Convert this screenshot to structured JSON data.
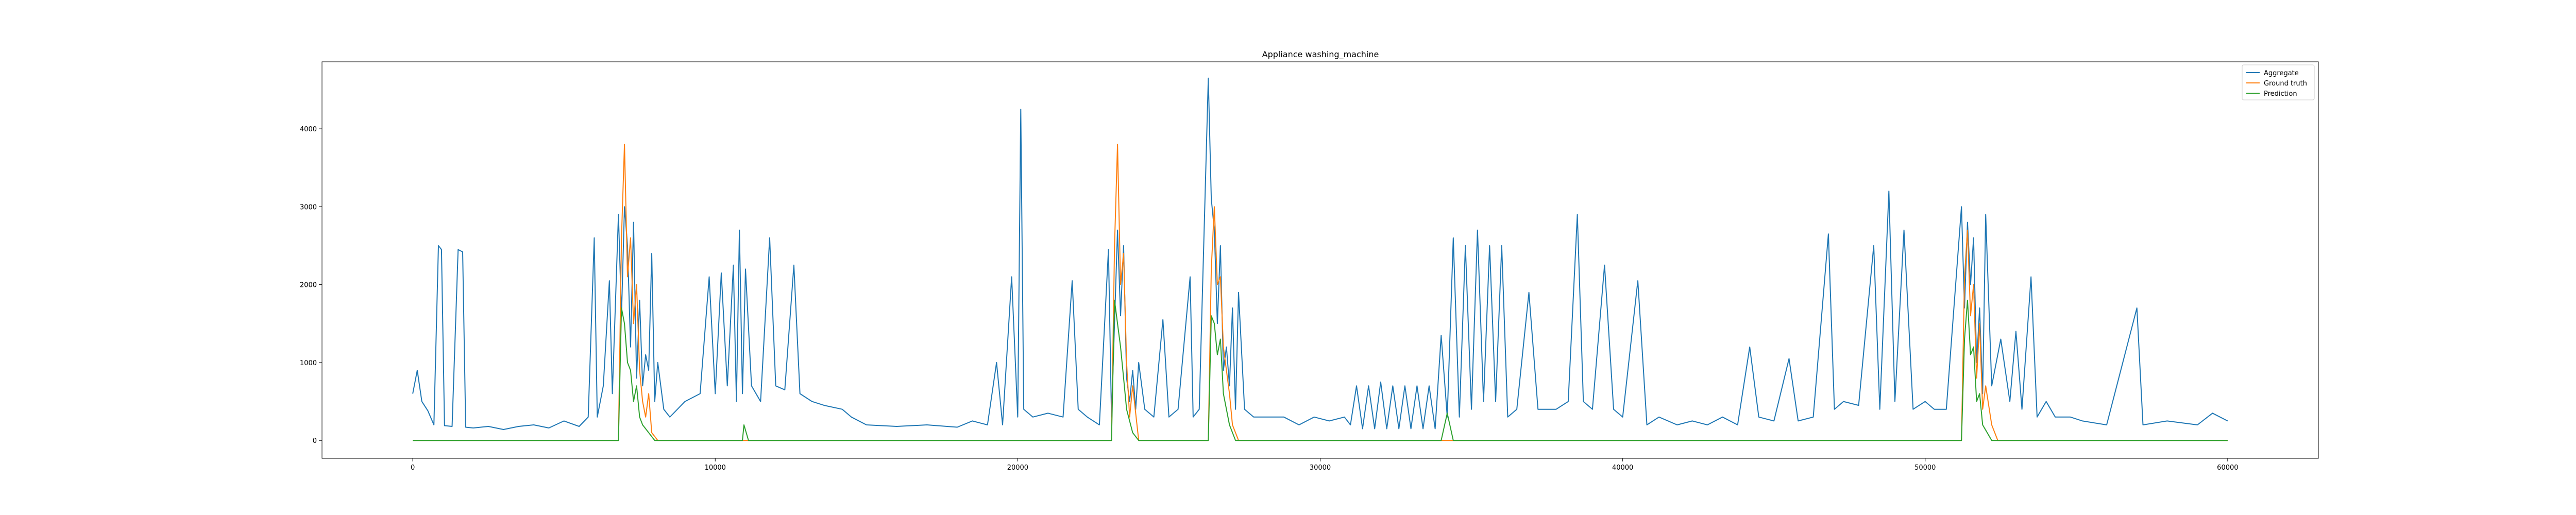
{
  "chart_data": {
    "type": "line",
    "title": "Appliance washing_machine",
    "xlabel": "",
    "ylabel": "",
    "xlim": [
      -3000,
      63000
    ],
    "ylim": [
      -230,
      4860
    ],
    "x_ticks": [
      0,
      10000,
      20000,
      30000,
      40000,
      50000,
      60000
    ],
    "y_ticks": [
      0,
      1000,
      2000,
      3000,
      4000
    ],
    "grid": false,
    "legend_position": "top-right",
    "series": [
      {
        "name": "Aggregate",
        "color": "#1f77b4",
        "points": [
          [
            0,
            600
          ],
          [
            150,
            900
          ],
          [
            300,
            500
          ],
          [
            500,
            380
          ],
          [
            700,
            200
          ],
          [
            850,
            2500
          ],
          [
            950,
            2450
          ],
          [
            1050,
            190
          ],
          [
            1300,
            180
          ],
          [
            1500,
            2450
          ],
          [
            1650,
            2420
          ],
          [
            1750,
            170
          ],
          [
            2000,
            160
          ],
          [
            2500,
            180
          ],
          [
            3000,
            140
          ],
          [
            3500,
            180
          ],
          [
            4000,
            200
          ],
          [
            4500,
            160
          ],
          [
            5000,
            250
          ],
          [
            5500,
            180
          ],
          [
            5800,
            300
          ],
          [
            6000,
            2600
          ],
          [
            6100,
            300
          ],
          [
            6300,
            700
          ],
          [
            6500,
            2050
          ],
          [
            6600,
            600
          ],
          [
            6800,
            2900
          ],
          [
            6900,
            1600
          ],
          [
            7000,
            3000
          ],
          [
            7100,
            2500
          ],
          [
            7200,
            1200
          ],
          [
            7300,
            2800
          ],
          [
            7400,
            800
          ],
          [
            7500,
            1800
          ],
          [
            7600,
            700
          ],
          [
            7700,
            1100
          ],
          [
            7800,
            900
          ],
          [
            7900,
            2400
          ],
          [
            8000,
            500
          ],
          [
            8100,
            1000
          ],
          [
            8300,
            400
          ],
          [
            8500,
            300
          ],
          [
            9000,
            500
          ],
          [
            9500,
            600
          ],
          [
            9800,
            2100
          ],
          [
            10000,
            600
          ],
          [
            10200,
            2150
          ],
          [
            10400,
            700
          ],
          [
            10600,
            2250
          ],
          [
            10700,
            500
          ],
          [
            10800,
            2700
          ],
          [
            10900,
            600
          ],
          [
            11000,
            2200
          ],
          [
            11200,
            700
          ],
          [
            11500,
            500
          ],
          [
            11800,
            2600
          ],
          [
            12000,
            700
          ],
          [
            12300,
            650
          ],
          [
            12600,
            2250
          ],
          [
            12800,
            600
          ],
          [
            13200,
            500
          ],
          [
            13600,
            450
          ],
          [
            14200,
            400
          ],
          [
            14500,
            300
          ],
          [
            15000,
            200
          ],
          [
            16000,
            180
          ],
          [
            17000,
            200
          ],
          [
            18000,
            170
          ],
          [
            18500,
            250
          ],
          [
            19000,
            200
          ],
          [
            19300,
            1000
          ],
          [
            19500,
            200
          ],
          [
            19800,
            2100
          ],
          [
            20000,
            300
          ],
          [
            20100,
            4250
          ],
          [
            20200,
            400
          ],
          [
            20500,
            300
          ],
          [
            21000,
            350
          ],
          [
            21500,
            300
          ],
          [
            21800,
            2050
          ],
          [
            22000,
            400
          ],
          [
            22300,
            300
          ],
          [
            22700,
            200
          ],
          [
            23000,
            2450
          ],
          [
            23100,
            300
          ],
          [
            23300,
            2700
          ],
          [
            23400,
            1600
          ],
          [
            23500,
            2500
          ],
          [
            23600,
            800
          ],
          [
            23700,
            500
          ],
          [
            23800,
            900
          ],
          [
            23900,
            400
          ],
          [
            24000,
            1000
          ],
          [
            24200,
            400
          ],
          [
            24500,
            300
          ],
          [
            24800,
            1550
          ],
          [
            25000,
            300
          ],
          [
            25300,
            400
          ],
          [
            25700,
            2100
          ],
          [
            25800,
            300
          ],
          [
            26000,
            400
          ],
          [
            26300,
            4650
          ],
          [
            26400,
            3100
          ],
          [
            26500,
            2700
          ],
          [
            26600,
            1500
          ],
          [
            26700,
            2500
          ],
          [
            26800,
            900
          ],
          [
            26900,
            1200
          ],
          [
            27000,
            700
          ],
          [
            27100,
            1700
          ],
          [
            27200,
            400
          ],
          [
            27300,
            1900
          ],
          [
            27500,
            400
          ],
          [
            27800,
            300
          ],
          [
            28300,
            300
          ],
          [
            28800,
            300
          ],
          [
            29300,
            200
          ],
          [
            29800,
            300
          ],
          [
            30300,
            250
          ],
          [
            30800,
            300
          ],
          [
            31000,
            200
          ],
          [
            31200,
            700
          ],
          [
            31400,
            150
          ],
          [
            31600,
            700
          ],
          [
            31800,
            150
          ],
          [
            32000,
            750
          ],
          [
            32200,
            150
          ],
          [
            32400,
            700
          ],
          [
            32600,
            150
          ],
          [
            32800,
            700
          ],
          [
            33000,
            150
          ],
          [
            33200,
            700
          ],
          [
            33400,
            150
          ],
          [
            33600,
            700
          ],
          [
            33800,
            150
          ],
          [
            34000,
            1350
          ],
          [
            34200,
            300
          ],
          [
            34400,
            2600
          ],
          [
            34600,
            300
          ],
          [
            34800,
            2500
          ],
          [
            35000,
            400
          ],
          [
            35200,
            2700
          ],
          [
            35400,
            500
          ],
          [
            35600,
            2500
          ],
          [
            35800,
            500
          ],
          [
            36000,
            2500
          ],
          [
            36200,
            300
          ],
          [
            36500,
            400
          ],
          [
            36900,
            1900
          ],
          [
            37200,
            400
          ],
          [
            37800,
            400
          ],
          [
            38200,
            500
          ],
          [
            38500,
            2900
          ],
          [
            38700,
            500
          ],
          [
            39000,
            400
          ],
          [
            39400,
            2250
          ],
          [
            39700,
            400
          ],
          [
            40000,
            300
          ],
          [
            40500,
            2050
          ],
          [
            40800,
            200
          ],
          [
            41200,
            300
          ],
          [
            41800,
            200
          ],
          [
            42300,
            250
          ],
          [
            42800,
            200
          ],
          [
            43300,
            300
          ],
          [
            43800,
            200
          ],
          [
            44200,
            1200
          ],
          [
            44500,
            300
          ],
          [
            45000,
            250
          ],
          [
            45500,
            1050
          ],
          [
            45800,
            250
          ],
          [
            46300,
            300
          ],
          [
            46800,
            2650
          ],
          [
            47000,
            400
          ],
          [
            47300,
            500
          ],
          [
            47800,
            450
          ],
          [
            48300,
            2500
          ],
          [
            48500,
            400
          ],
          [
            48800,
            3200
          ],
          [
            49000,
            500
          ],
          [
            49300,
            2700
          ],
          [
            49600,
            400
          ],
          [
            50000,
            500
          ],
          [
            50300,
            400
          ],
          [
            50700,
            400
          ],
          [
            51200,
            3000
          ],
          [
            51300,
            1700
          ],
          [
            51400,
            2800
          ],
          [
            51500,
            2000
          ],
          [
            51600,
            2600
          ],
          [
            51700,
            1000
          ],
          [
            51800,
            1700
          ],
          [
            51900,
            600
          ],
          [
            52000,
            2900
          ],
          [
            52200,
            700
          ],
          [
            52500,
            1300
          ],
          [
            52800,
            500
          ],
          [
            53000,
            1400
          ],
          [
            53200,
            400
          ],
          [
            53500,
            2100
          ],
          [
            53700,
            300
          ],
          [
            54000,
            500
          ],
          [
            54300,
            300
          ],
          [
            54800,
            300
          ],
          [
            55200,
            250
          ],
          [
            56000,
            200
          ],
          [
            57000,
            1700
          ],
          [
            57200,
            200
          ],
          [
            58000,
            250
          ],
          [
            59000,
            200
          ],
          [
            59500,
            350
          ],
          [
            60000,
            250
          ]
        ]
      },
      {
        "name": "Ground truth",
        "color": "#ff7f0e",
        "points": [
          [
            0,
            0
          ],
          [
            6800,
            0
          ],
          [
            6900,
            2600
          ],
          [
            7000,
            3800
          ],
          [
            7100,
            2100
          ],
          [
            7200,
            2600
          ],
          [
            7300,
            1500
          ],
          [
            7400,
            2000
          ],
          [
            7500,
            900
          ],
          [
            7600,
            500
          ],
          [
            7700,
            300
          ],
          [
            7800,
            600
          ],
          [
            7900,
            100
          ],
          [
            8100,
            0
          ],
          [
            23100,
            0
          ],
          [
            23200,
            2500
          ],
          [
            23300,
            3800
          ],
          [
            23400,
            2000
          ],
          [
            23500,
            2400
          ],
          [
            23600,
            1000
          ],
          [
            23700,
            300
          ],
          [
            23800,
            700
          ],
          [
            24000,
            0
          ],
          [
            26300,
            0
          ],
          [
            26400,
            2200
          ],
          [
            26500,
            3000
          ],
          [
            26600,
            2000
          ],
          [
            26700,
            2100
          ],
          [
            26800,
            1200
          ],
          [
            26900,
            900
          ],
          [
            27000,
            600
          ],
          [
            27100,
            200
          ],
          [
            27300,
            0
          ],
          [
            51200,
            0
          ],
          [
            51300,
            2100
          ],
          [
            51400,
            2700
          ],
          [
            51500,
            1600
          ],
          [
            51600,
            2000
          ],
          [
            51700,
            800
          ],
          [
            51800,
            1500
          ],
          [
            51900,
            400
          ],
          [
            52000,
            700
          ],
          [
            52200,
            200
          ],
          [
            52400,
            0
          ],
          [
            60000,
            0
          ]
        ]
      },
      {
        "name": "Prediction",
        "color": "#2ca02c",
        "points": [
          [
            0,
            0
          ],
          [
            6800,
            0
          ],
          [
            6900,
            1700
          ],
          [
            7000,
            1500
          ],
          [
            7100,
            1000
          ],
          [
            7200,
            900
          ],
          [
            7300,
            500
          ],
          [
            7400,
            700
          ],
          [
            7500,
            300
          ],
          [
            7600,
            200
          ],
          [
            7800,
            100
          ],
          [
            8000,
            0
          ],
          [
            10900,
            0
          ],
          [
            10950,
            200
          ],
          [
            11100,
            0
          ],
          [
            23100,
            0
          ],
          [
            23200,
            1800
          ],
          [
            23300,
            1500
          ],
          [
            23400,
            1200
          ],
          [
            23500,
            800
          ],
          [
            23600,
            400
          ],
          [
            23800,
            100
          ],
          [
            24000,
            0
          ],
          [
            26300,
            0
          ],
          [
            26400,
            1600
          ],
          [
            26500,
            1500
          ],
          [
            26600,
            1100
          ],
          [
            26700,
            1300
          ],
          [
            26800,
            600
          ],
          [
            26900,
            400
          ],
          [
            27000,
            200
          ],
          [
            27200,
            0
          ],
          [
            34000,
            0
          ],
          [
            34200,
            350
          ],
          [
            34400,
            0
          ],
          [
            51200,
            0
          ],
          [
            51300,
            1300
          ],
          [
            51400,
            1800
          ],
          [
            51500,
            1100
          ],
          [
            51600,
            1200
          ],
          [
            51700,
            500
          ],
          [
            51800,
            600
          ],
          [
            51900,
            200
          ],
          [
            52200,
            0
          ],
          [
            60000,
            0
          ]
        ]
      }
    ]
  }
}
